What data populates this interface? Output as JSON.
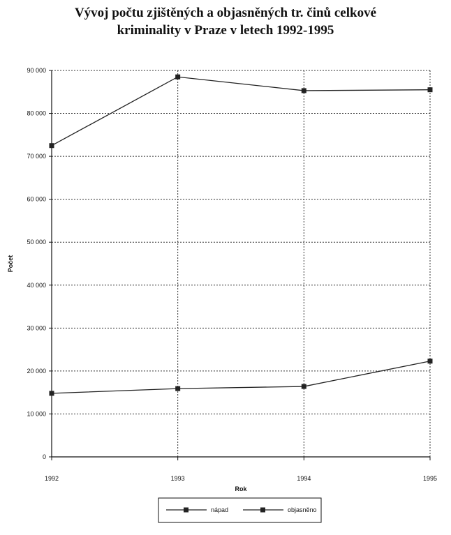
{
  "chart_data": {
    "type": "line",
    "title_lines": [
      "Vývoj počtu zjištěných a objasněných tr. činů celkové",
      "kriminality v Praze v letech 1992-1995"
    ],
    "xlabel": "Rok",
    "ylabel": "Počet",
    "categories": [
      "1992",
      "1993",
      "1994",
      "1995"
    ],
    "ylim": [
      0,
      90000
    ],
    "yticks": [
      0,
      10000,
      20000,
      30000,
      40000,
      50000,
      60000,
      70000,
      80000,
      90000
    ],
    "ytick_labels": [
      "0",
      "10 000",
      "20 000",
      "30 000",
      "40 000",
      "50 000",
      "60 000",
      "70 000",
      "80 000",
      "90 000"
    ],
    "grid": true,
    "legend_position": "bottom",
    "series": [
      {
        "name": "nápad",
        "values": [
          72500,
          88500,
          85300,
          85500
        ],
        "color": "#222222"
      },
      {
        "name": "objasněno",
        "values": [
          14800,
          15900,
          16400,
          22300
        ],
        "color": "#222222"
      }
    ]
  }
}
